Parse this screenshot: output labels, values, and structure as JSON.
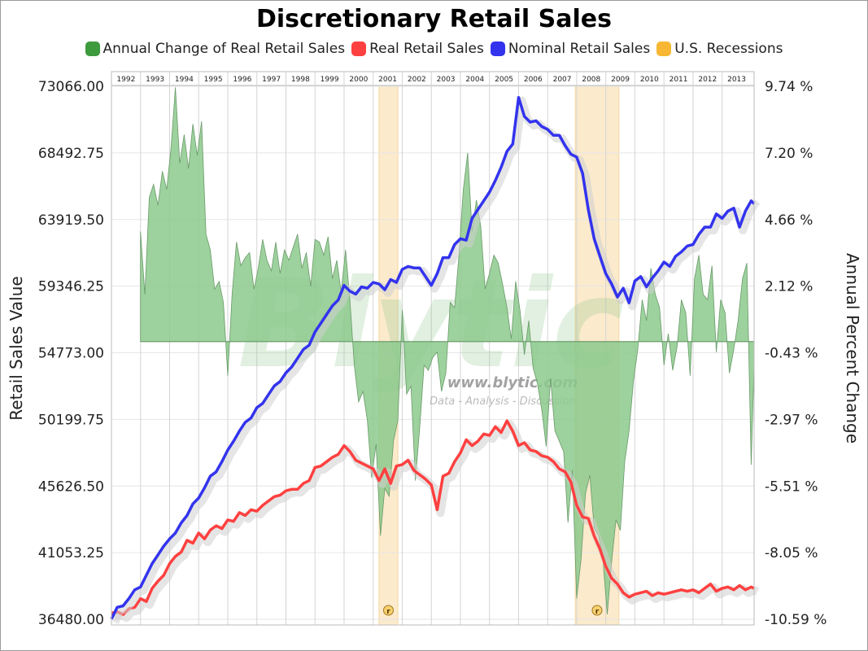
{
  "chart_data": {
    "type": "line",
    "title": "Discretionary Retail Sales",
    "ylabel": "Retail Sales Value",
    "y2label": "Annual Percent Change",
    "ylim": [
      36480.0,
      73066.0
    ],
    "y2lim": [
      -10.59,
      9.74
    ],
    "yticks": [
      "73066.00",
      "68492.75",
      "63919.50",
      "59346.25",
      "54773.00",
      "50199.75",
      "45626.50",
      "41053.25",
      "36480.00"
    ],
    "y2ticks": [
      "9.74 %",
      "7.20 %",
      "4.66 %",
      "2.12 %",
      "-0.43 %",
      "-2.97 %",
      "-5.51 %",
      "-8.05 %",
      "-10.59 %"
    ],
    "xticks": [
      "1992",
      "1993",
      "1994",
      "1995",
      "1996",
      "1997",
      "1998",
      "1999",
      "2000",
      "2001",
      "2002",
      "2003",
      "2004",
      "2005",
      "2006",
      "2007",
      "2008",
      "2009",
      "2010",
      "2011",
      "2012",
      "2013"
    ],
    "xlim": [
      1992.0,
      2014.1
    ],
    "legend_position": "top",
    "grid": true,
    "watermark": {
      "logo": "Blytic",
      "url": "www.blytic.com",
      "tagline": "Data - Analysis - Discussion"
    },
    "recession_marker": "r",
    "series": [
      {
        "name": "Annual Change of Real Retail Sales",
        "color": "#3d9a3d",
        "fill": "#8cc98c",
        "axis": "right",
        "x": [
          1993.0,
          1993.15,
          1993.3,
          1993.45,
          1993.6,
          1993.75,
          1993.9,
          1994.05,
          1994.2,
          1994.35,
          1994.5,
          1994.65,
          1994.8,
          1994.95,
          1995.1,
          1995.25,
          1995.4,
          1995.55,
          1995.7,
          1995.85,
          1996.0,
          1996.15,
          1996.3,
          1996.45,
          1996.6,
          1996.75,
          1996.9,
          1997.05,
          1997.2,
          1997.35,
          1997.5,
          1997.65,
          1997.8,
          1997.95,
          1998.1,
          1998.25,
          1998.4,
          1998.55,
          1998.7,
          1998.85,
          1999.0,
          1999.15,
          1999.3,
          1999.45,
          1999.6,
          1999.75,
          1999.9,
          2000.05,
          2000.2,
          2000.35,
          2000.5,
          2000.65,
          2000.8,
          2000.95,
          2001.1,
          2001.25,
          2001.4,
          2001.55,
          2001.7,
          2001.85,
          2002.0,
          2002.15,
          2002.3,
          2002.45,
          2002.6,
          2002.75,
          2002.9,
          2003.05,
          2003.2,
          2003.35,
          2003.5,
          2003.65,
          2003.8,
          2003.95,
          2004.1,
          2004.25,
          2004.4,
          2004.55,
          2004.7,
          2004.85,
          2005.0,
          2005.15,
          2005.3,
          2005.45,
          2005.6,
          2005.75,
          2005.9,
          2006.05,
          2006.2,
          2006.35,
          2006.5,
          2006.65,
          2006.8,
          2006.95,
          2007.1,
          2007.25,
          2007.4,
          2007.55,
          2007.7,
          2007.85,
          2008.0,
          2008.15,
          2008.3,
          2008.45,
          2008.6,
          2008.75,
          2008.9,
          2009.05,
          2009.2,
          2009.35,
          2009.5,
          2009.65,
          2009.8,
          2009.95,
          2010.1,
          2010.25,
          2010.4,
          2010.55,
          2010.7,
          2010.85,
          2011.0,
          2011.15,
          2011.3,
          2011.45,
          2011.6,
          2011.75,
          2011.9,
          2012.05,
          2012.2,
          2012.35,
          2012.5,
          2012.65,
          2012.8,
          2012.95,
          2013.1,
          2013.25,
          2013.4,
          2013.55,
          2013.7,
          2013.85,
          2014.0,
          2014.1
        ],
        "values": [
          4.2,
          1.8,
          5.5,
          6.0,
          5.2,
          6.5,
          5.8,
          7.4,
          9.7,
          6.8,
          7.9,
          6.6,
          8.3,
          7.1,
          8.4,
          4.1,
          3.5,
          2.0,
          2.3,
          1.5,
          -1.3,
          1.8,
          3.8,
          2.9,
          3.2,
          3.4,
          2.0,
          2.8,
          3.9,
          3.1,
          2.7,
          3.8,
          2.6,
          3.5,
          3.1,
          3.6,
          4.1,
          2.8,
          3.4,
          2.1,
          3.9,
          3.8,
          3.3,
          4.0,
          2.4,
          3.1,
          1.9,
          3.5,
          1.6,
          -0.9,
          -2.3,
          -1.9,
          -3.0,
          -5.2,
          -3.9,
          -7.4,
          -5.6,
          -5.9,
          -3.8,
          -3.0,
          1.2,
          -2.0,
          -1.7,
          -5.3,
          -3.3,
          -0.9,
          -1.1,
          -0.6,
          -0.4,
          -1.9,
          -1.2,
          1.5,
          1.3,
          3.3,
          5.8,
          7.2,
          4.2,
          5.4,
          4.4,
          2.0,
          2.6,
          3.3,
          3.0,
          2.2,
          1.3,
          0.1,
          2.3,
          1.2,
          -0.5,
          0.8,
          -1.0,
          -1.6,
          -2.6,
          -4.0,
          -1.4,
          -3.4,
          -3.8,
          -4.2,
          -6.9,
          -4.9,
          -9.8,
          -8.3,
          -5.8,
          -5.1,
          -7.1,
          -7.4,
          -8.3,
          -10.4,
          -8.4,
          -6.8,
          -7.2,
          -4.6,
          -3.4,
          -1.5,
          -0.3,
          1.6,
          0.8,
          2.8,
          1.8,
          1.3,
          -0.9,
          0.3,
          -1.1,
          -0.2,
          1.6,
          1.1,
          -1.3,
          2.4,
          3.3,
          1.8,
          1.6,
          2.9,
          -0.4,
          1.6,
          1.1,
          -1.2,
          -0.3,
          0.8,
          2.4,
          3.0,
          -4.7,
          -0.9
        ],
        "y_min_clip": -10.59
      },
      {
        "name": "Real Retail Sales",
        "color": "#ff4040",
        "axis": "left",
        "x": [
          1992.0,
          1992.2,
          1992.4,
          1992.6,
          1992.8,
          1993.0,
          1993.2,
          1993.4,
          1993.6,
          1993.8,
          1994.0,
          1994.2,
          1994.4,
          1994.6,
          1994.8,
          1995.0,
          1995.2,
          1995.4,
          1995.6,
          1995.8,
          1996.0,
          1996.2,
          1996.4,
          1996.6,
          1996.8,
          1997.0,
          1997.2,
          1997.4,
          1997.6,
          1997.8,
          1998.0,
          1998.2,
          1998.4,
          1998.6,
          1998.8,
          1999.0,
          1999.2,
          1999.4,
          1999.6,
          1999.8,
          2000.0,
          2000.2,
          2000.4,
          2000.6,
          2000.8,
          2001.0,
          2001.2,
          2001.4,
          2001.6,
          2001.8,
          2002.0,
          2002.2,
          2002.4,
          2002.6,
          2002.8,
          2003.0,
          2003.2,
          2003.4,
          2003.6,
          2003.8,
          2004.0,
          2004.2,
          2004.4,
          2004.6,
          2004.8,
          2005.0,
          2005.2,
          2005.4,
          2005.6,
          2005.8,
          2006.0,
          2006.2,
          2006.4,
          2006.6,
          2006.8,
          2007.0,
          2007.2,
          2007.4,
          2007.6,
          2007.8,
          2008.0,
          2008.2,
          2008.4,
          2008.6,
          2008.8,
          2009.0,
          2009.2,
          2009.4,
          2009.6,
          2009.8,
          2010.0,
          2010.2,
          2010.4,
          2010.6,
          2010.8,
          2011.0,
          2011.2,
          2011.4,
          2011.6,
          2011.8,
          2012.0,
          2012.2,
          2012.4,
          2012.6,
          2012.8,
          2013.0,
          2013.2,
          2013.4,
          2013.6,
          2013.8,
          2014.0,
          2014.1
        ],
        "values": [
          36900,
          37000,
          36800,
          37200,
          37300,
          37900,
          37700,
          38600,
          39100,
          39500,
          40300,
          40800,
          41100,
          41900,
          41700,
          42400,
          42000,
          42600,
          42900,
          42700,
          43300,
          43200,
          43800,
          43600,
          44000,
          43900,
          44300,
          44600,
          44900,
          45000,
          45300,
          45400,
          45400,
          45800,
          46000,
          46900,
          47000,
          47300,
          47600,
          47800,
          48400,
          48000,
          47400,
          47200,
          47000,
          46800,
          46000,
          46800,
          45800,
          47000,
          47100,
          47400,
          46700,
          46400,
          46100,
          45700,
          44000,
          46300,
          46500,
          47300,
          47900,
          48800,
          48400,
          48700,
          49200,
          49100,
          49700,
          49300,
          50100,
          49400,
          48400,
          48600,
          48100,
          48000,
          47700,
          47600,
          47300,
          46800,
          46600,
          45900,
          44300,
          43500,
          43400,
          42200,
          41300,
          40100,
          39300,
          38900,
          38300,
          38000,
          38200,
          38300,
          38400,
          38100,
          38300,
          38200,
          38300,
          38400,
          38500,
          38400,
          38500,
          38300,
          38600,
          38900,
          38400,
          38600,
          38700,
          38500,
          38800,
          38500,
          38700,
          38600
        ],
        "band": true
      },
      {
        "name": "Nominal Retail Sales",
        "color": "#3333ee",
        "axis": "left",
        "x": [
          1992.0,
          1992.2,
          1992.4,
          1992.6,
          1992.8,
          1993.0,
          1993.2,
          1993.4,
          1993.6,
          1993.8,
          1994.0,
          1994.2,
          1994.4,
          1994.6,
          1994.8,
          1995.0,
          1995.2,
          1995.4,
          1995.6,
          1995.8,
          1996.0,
          1996.2,
          1996.4,
          1996.6,
          1996.8,
          1997.0,
          1997.2,
          1997.4,
          1997.6,
          1997.8,
          1998.0,
          1998.2,
          1998.4,
          1998.6,
          1998.8,
          1999.0,
          1999.2,
          1999.4,
          1999.6,
          1999.8,
          2000.0,
          2000.2,
          2000.4,
          2000.6,
          2000.8,
          2001.0,
          2001.2,
          2001.4,
          2001.6,
          2001.8,
          2002.0,
          2002.2,
          2002.4,
          2002.6,
          2002.8,
          2003.0,
          2003.2,
          2003.4,
          2003.6,
          2003.8,
          2004.0,
          2004.2,
          2004.4,
          2004.6,
          2004.8,
          2005.0,
          2005.2,
          2005.4,
          2005.6,
          2005.8,
          2006.0,
          2006.2,
          2006.4,
          2006.6,
          2006.8,
          2007.0,
          2007.2,
          2007.4,
          2007.6,
          2007.8,
          2008.0,
          2008.2,
          2008.4,
          2008.6,
          2008.8,
          2009.0,
          2009.2,
          2009.4,
          2009.6,
          2009.8,
          2010.0,
          2010.2,
          2010.4,
          2010.6,
          2010.8,
          2011.0,
          2011.2,
          2011.4,
          2011.6,
          2011.8,
          2012.0,
          2012.2,
          2012.4,
          2012.6,
          2012.8,
          2013.0,
          2013.2,
          2013.4,
          2013.6,
          2013.8,
          2014.0,
          2014.1
        ],
        "values": [
          36500,
          37300,
          37400,
          37900,
          38500,
          38700,
          39500,
          40300,
          40900,
          41500,
          42000,
          42400,
          43100,
          43600,
          44400,
          44800,
          45500,
          46300,
          46600,
          47300,
          48100,
          48700,
          49400,
          50000,
          50300,
          51000,
          51300,
          51900,
          52500,
          52800,
          53400,
          53800,
          54400,
          55000,
          55300,
          56200,
          56800,
          57400,
          58000,
          58400,
          59400,
          59000,
          58800,
          59300,
          59200,
          59600,
          59500,
          59100,
          59800,
          59600,
          60500,
          60700,
          60600,
          60600,
          60000,
          59400,
          60200,
          61300,
          61300,
          62200,
          62600,
          62500,
          64000,
          64600,
          65200,
          65800,
          66600,
          67500,
          68600,
          69100,
          72300,
          71000,
          70600,
          70700,
          70300,
          70100,
          69700,
          69700,
          69000,
          68400,
          68200,
          67100,
          64600,
          62600,
          61400,
          60200,
          59500,
          58600,
          59200,
          58200,
          59700,
          60000,
          59300,
          59900,
          60400,
          61000,
          60700,
          61400,
          61700,
          62100,
          62200,
          62900,
          63400,
          63400,
          64300,
          64000,
          64500,
          64700,
          63400,
          64500,
          65200,
          65000
        ],
        "band": true
      },
      {
        "name": "U.S. Recessions",
        "color": "#f7b733",
        "fill": "#fbeacc",
        "periods": [
          [
            2001.2,
            2001.85
          ],
          [
            2007.95,
            2009.45
          ]
        ]
      }
    ]
  }
}
